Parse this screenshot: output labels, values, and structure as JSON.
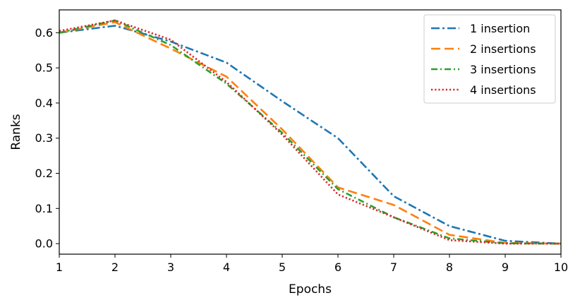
{
  "chart_data": {
    "type": "line",
    "title": "",
    "xlabel": "Epochs",
    "ylabel": "Ranks",
    "x": [
      1,
      2,
      3,
      4,
      5,
      6,
      7,
      8,
      9,
      10
    ],
    "xlim": [
      1,
      10
    ],
    "ylim": [
      -0.03,
      0.665
    ],
    "xticks": [
      "1",
      "2",
      "3",
      "4",
      "5",
      "6",
      "7",
      "8",
      "9",
      "10"
    ],
    "yticks": [
      "0.0",
      "0.1",
      "0.2",
      "0.3",
      "0.4",
      "0.5",
      "0.6"
    ],
    "grid": false,
    "legend_position": "top-right",
    "series": [
      {
        "name": "1 insertion",
        "color": "#1f77b4",
        "dash": "dashdot",
        "values": [
          0.6,
          0.62,
          0.575,
          0.515,
          0.405,
          0.3,
          0.135,
          0.05,
          0.008,
          0.0
        ]
      },
      {
        "name": "2 insertions",
        "color": "#ff7f0e",
        "dash": "dashed",
        "values": [
          0.6,
          0.63,
          0.555,
          0.475,
          0.325,
          0.16,
          0.11,
          0.025,
          0.002,
          0.0
        ]
      },
      {
        "name": "3 insertions",
        "color": "#2ca02c",
        "dash": "dashdotdense",
        "values": [
          0.6,
          0.635,
          0.565,
          0.455,
          0.315,
          0.155,
          0.075,
          0.015,
          0.001,
          0.0
        ]
      },
      {
        "name": "4 insertions",
        "color": "#d62728",
        "dash": "dotted",
        "values": [
          0.605,
          0.635,
          0.58,
          0.46,
          0.31,
          0.14,
          0.075,
          0.01,
          0.0,
          0.0
        ]
      }
    ]
  }
}
